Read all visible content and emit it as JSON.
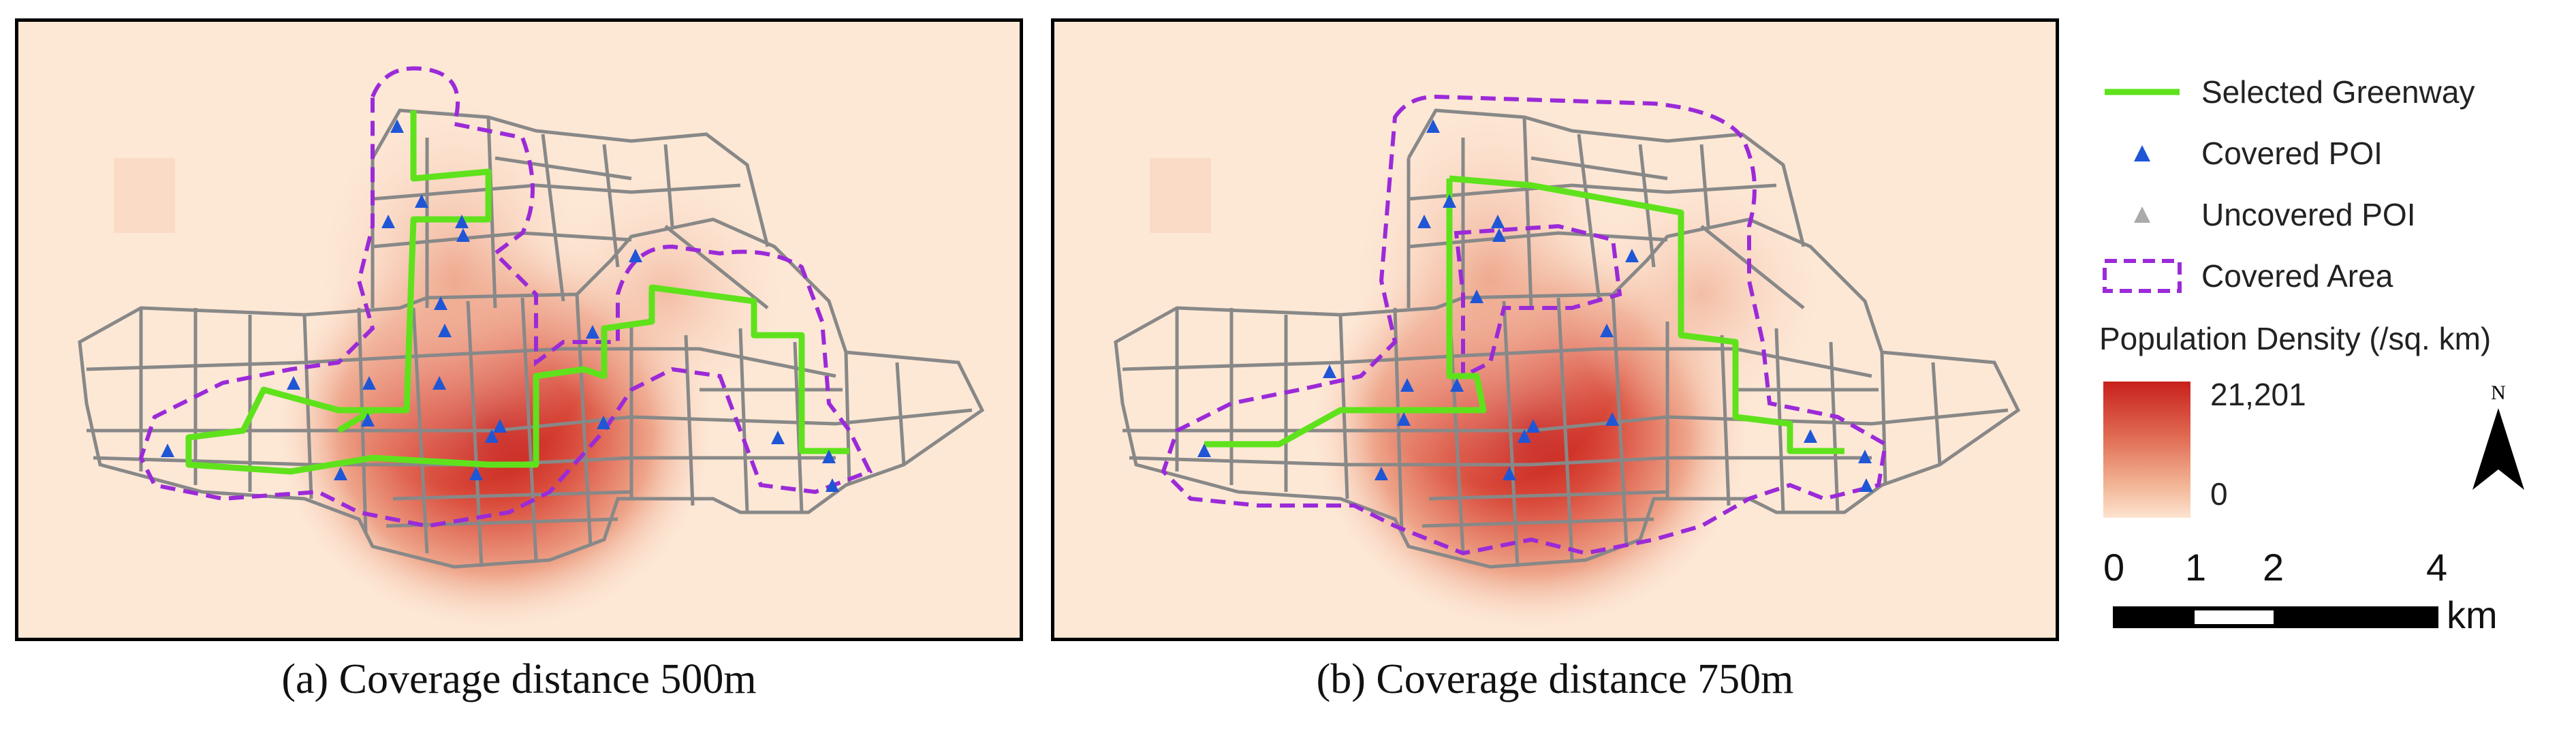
{
  "panels": [
    {
      "id": "a",
      "caption": "(a) Coverage distance 500m"
    },
    {
      "id": "b",
      "caption": "(b) Coverage distance 750m"
    }
  ],
  "legend": {
    "items": [
      {
        "label": "Selected Greenway",
        "color": "#5fe21c",
        "icon": "green-line"
      },
      {
        "label": "Covered POI",
        "color": "#1f56d6",
        "icon": "blue-triangle"
      },
      {
        "label": "Uncovered POI",
        "color": "#aaaaaa",
        "icon": "gray-triangle"
      },
      {
        "label": "Covered Area",
        "color": "#9b2ad8",
        "icon": "dashed-box"
      }
    ],
    "density_title": "Population Density (/sq. km)",
    "density_max": "21,201",
    "density_min": "0",
    "density_colors": [
      "#c8201c",
      "#fde3cf"
    ]
  },
  "north_label": "N",
  "scale": {
    "ticks": [
      "0",
      "1",
      "2",
      "4"
    ],
    "unit": "km"
  }
}
